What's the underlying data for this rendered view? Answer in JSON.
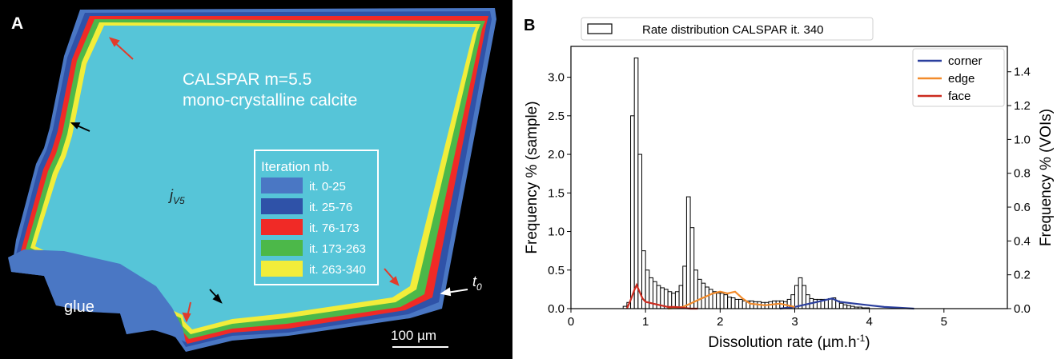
{
  "panel_a": {
    "letter": "A",
    "sample_title": "CALSPAR m=5.5",
    "sample_subtitle": "mono-crystalline calcite",
    "label_jv5": "j",
    "label_jv5_sub": "V5",
    "label_glue": "glue",
    "label_t0": "t",
    "label_t0_sub": "0",
    "scale_bar": "100 µm",
    "legend_title": "Iteration nb.",
    "legend_items": [
      {
        "label": "it. 0-25",
        "color": "#4a77c4"
      },
      {
        "label": "it. 25-76",
        "color": "#2f52a8"
      },
      {
        "label": "it. 76-173",
        "color": "#f02a26"
      },
      {
        "label": "it. 173-263",
        "color": "#4cb849"
      },
      {
        "label": "it. 263-340",
        "color": "#f2ed3a"
      }
    ],
    "colors": {
      "interior": "#56c5d8",
      "background": "#000000",
      "red_arrow": "#e23b2a"
    }
  },
  "panel_b": {
    "letter": "B"
  },
  "chart_data": {
    "type": "bar",
    "title": "Rate distribution CALSPAR it. 340",
    "xlabel": "Dissolution rate (µm.h",
    "xlabel_sup": "-1",
    "xlabel_end": ")",
    "ylabel": "Frequency % (sample)",
    "ylabel_right": "Frequency % (VOIs)",
    "xlim": [
      0,
      5.85
    ],
    "ylim": [
      0,
      3.4
    ],
    "ylim_right": [
      0,
      1.55
    ],
    "xticks": [
      0,
      1,
      2,
      3,
      4,
      5
    ],
    "yticks": [
      0.0,
      0.5,
      1.0,
      1.5,
      2.0,
      2.5,
      3.0
    ],
    "yticks_right": [
      0.0,
      0.2,
      0.4,
      0.6,
      0.8,
      1.0,
      1.2,
      1.4
    ],
    "histogram_name": "Rate distribution CALSPAR it. 340",
    "bin_width": 0.05,
    "bins": [
      [
        0.7,
        0.03
      ],
      [
        0.75,
        0.08
      ],
      [
        0.8,
        2.5
      ],
      [
        0.85,
        3.25
      ],
      [
        0.9,
        2.0
      ],
      [
        0.95,
        0.75
      ],
      [
        1.0,
        0.5
      ],
      [
        1.05,
        0.4
      ],
      [
        1.1,
        0.35
      ],
      [
        1.15,
        0.3
      ],
      [
        1.2,
        0.27
      ],
      [
        1.25,
        0.25
      ],
      [
        1.3,
        0.22
      ],
      [
        1.35,
        0.2
      ],
      [
        1.4,
        0.22
      ],
      [
        1.45,
        0.3
      ],
      [
        1.5,
        0.55
      ],
      [
        1.55,
        1.45
      ],
      [
        1.6,
        1.05
      ],
      [
        1.65,
        0.5
      ],
      [
        1.7,
        0.38
      ],
      [
        1.75,
        0.33
      ],
      [
        1.8,
        0.28
      ],
      [
        1.85,
        0.25
      ],
      [
        1.9,
        0.22
      ],
      [
        1.95,
        0.2
      ],
      [
        2.0,
        0.2
      ],
      [
        2.05,
        0.18
      ],
      [
        2.1,
        0.15
      ],
      [
        2.15,
        0.14
      ],
      [
        2.2,
        0.12
      ],
      [
        2.25,
        0.12
      ],
      [
        2.3,
        0.1
      ],
      [
        2.35,
        0.1
      ],
      [
        2.4,
        0.1
      ],
      [
        2.45,
        0.09
      ],
      [
        2.5,
        0.09
      ],
      [
        2.55,
        0.08
      ],
      [
        2.6,
        0.08
      ],
      [
        2.65,
        0.09
      ],
      [
        2.7,
        0.1
      ],
      [
        2.75,
        0.1
      ],
      [
        2.8,
        0.1
      ],
      [
        2.85,
        0.09
      ],
      [
        2.9,
        0.12
      ],
      [
        2.95,
        0.18
      ],
      [
        3.0,
        0.3
      ],
      [
        3.05,
        0.4
      ],
      [
        3.1,
        0.3
      ],
      [
        3.15,
        0.18
      ],
      [
        3.2,
        0.13
      ],
      [
        3.25,
        0.12
      ],
      [
        3.3,
        0.12
      ],
      [
        3.35,
        0.12
      ],
      [
        3.4,
        0.12
      ],
      [
        3.45,
        0.13
      ],
      [
        3.5,
        0.14
      ],
      [
        3.55,
        0.1
      ],
      [
        3.6,
        0.07
      ],
      [
        3.65,
        0.05
      ],
      [
        3.7,
        0.04
      ],
      [
        3.75,
        0.03
      ],
      [
        3.8,
        0.02
      ],
      [
        3.85,
        0.02
      ],
      [
        3.9,
        0.01
      ],
      [
        3.95,
        0.01
      ]
    ],
    "series": [
      {
        "name": "corner",
        "color": "#2b3f9e",
        "x": [
          2.8,
          3.0,
          3.2,
          3.4,
          3.5,
          3.6,
          3.8,
          4.0,
          4.2,
          4.4,
          4.6
        ],
        "y": [
          0.0,
          0.01,
          0.03,
          0.05,
          0.06,
          0.04,
          0.03,
          0.02,
          0.01,
          0.005,
          0.0
        ]
      },
      {
        "name": "edge",
        "color": "#f28b2b",
        "x": [
          1.3,
          1.5,
          1.6,
          1.7,
          1.8,
          1.9,
          2.0,
          2.1,
          2.2,
          2.3,
          2.4,
          2.6,
          2.8,
          3.0
        ],
        "y": [
          0.0,
          0.01,
          0.03,
          0.05,
          0.07,
          0.09,
          0.1,
          0.09,
          0.1,
          0.06,
          0.03,
          0.02,
          0.03,
          0.01
        ]
      },
      {
        "name": "face",
        "color": "#cc2a1e",
        "x": [
          0.75,
          0.8,
          0.85,
          0.88,
          0.92,
          0.96,
          1.0,
          1.1,
          1.2,
          1.3,
          1.4,
          1.5,
          1.6,
          1.7
        ],
        "y": [
          0.0,
          0.05,
          0.11,
          0.14,
          0.1,
          0.06,
          0.04,
          0.03,
          0.02,
          0.01,
          0.01,
          0.005,
          0.0,
          0.0
        ]
      }
    ],
    "legend_position": "top-right"
  }
}
